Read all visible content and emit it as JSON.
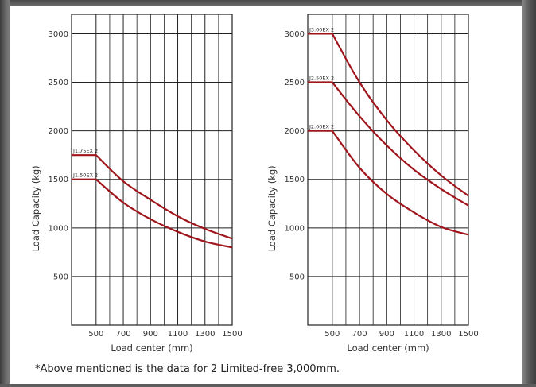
{
  "footnote": "*Above mentioned is the data for 2 Limited-free 3,000mm.",
  "colors": {
    "curve": "#a0151c",
    "grid": "#222222",
    "text": "#333333"
  },
  "chart_data": [
    {
      "type": "line",
      "title": "",
      "xlabel": "Load center (mm)",
      "ylabel": "Load Capacity (kg)",
      "xlim": [
        320,
        1500
      ],
      "ylim": [
        0,
        3200
      ],
      "xticks": [
        500,
        700,
        900,
        1100,
        1300,
        1500
      ],
      "xtick_labels": [
        "500",
        "700",
        "900",
        "1100",
        "1300",
        "1500"
      ],
      "yticks": [
        500,
        1000,
        1500,
        2000,
        2500,
        3000
      ],
      "ytick_labels": [
        "500",
        "1000",
        "1500",
        "2000",
        "2500",
        "3000"
      ],
      "grid": true,
      "series": [
        {
          "name": "J1.75EX 2",
          "x": [
            320,
            500,
            700,
            900,
            1100,
            1300,
            1500
          ],
          "values": [
            1750,
            1750,
            1480,
            1290,
            1120,
            990,
            890
          ]
        },
        {
          "name": "J1.50EX 2",
          "x": [
            320,
            500,
            700,
            900,
            1100,
            1300,
            1500
          ],
          "values": [
            1500,
            1500,
            1260,
            1090,
            960,
            860,
            800
          ]
        }
      ]
    },
    {
      "type": "line",
      "title": "",
      "xlabel": "Load center (mm)",
      "ylabel": "Load Capacity (kg)",
      "xlim": [
        320,
        1500
      ],
      "ylim": [
        0,
        3200
      ],
      "xticks": [
        500,
        700,
        900,
        1100,
        1300,
        1500
      ],
      "xtick_labels": [
        "500",
        "700",
        "900",
        "1100",
        "1300",
        "1500"
      ],
      "yticks": [
        500,
        1000,
        1500,
        2000,
        2500,
        3000
      ],
      "ytick_labels": [
        "500",
        "1000",
        "1500",
        "2000",
        "2500",
        "3000"
      ],
      "grid": true,
      "series": [
        {
          "name": "J3.00EX 2",
          "x": [
            320,
            500,
            700,
            900,
            1100,
            1300,
            1500
          ],
          "values": [
            3000,
            3000,
            2500,
            2110,
            1800,
            1540,
            1330
          ]
        },
        {
          "name": "J2.50EX 2",
          "x": [
            320,
            500,
            700,
            900,
            1100,
            1300,
            1500
          ],
          "values": [
            2500,
            2500,
            2150,
            1850,
            1600,
            1400,
            1230
          ]
        },
        {
          "name": "J2.00EX 2",
          "x": [
            320,
            500,
            700,
            900,
            1100,
            1300,
            1500
          ],
          "values": [
            2000,
            2000,
            1620,
            1350,
            1160,
            1010,
            930
          ]
        }
      ]
    }
  ]
}
